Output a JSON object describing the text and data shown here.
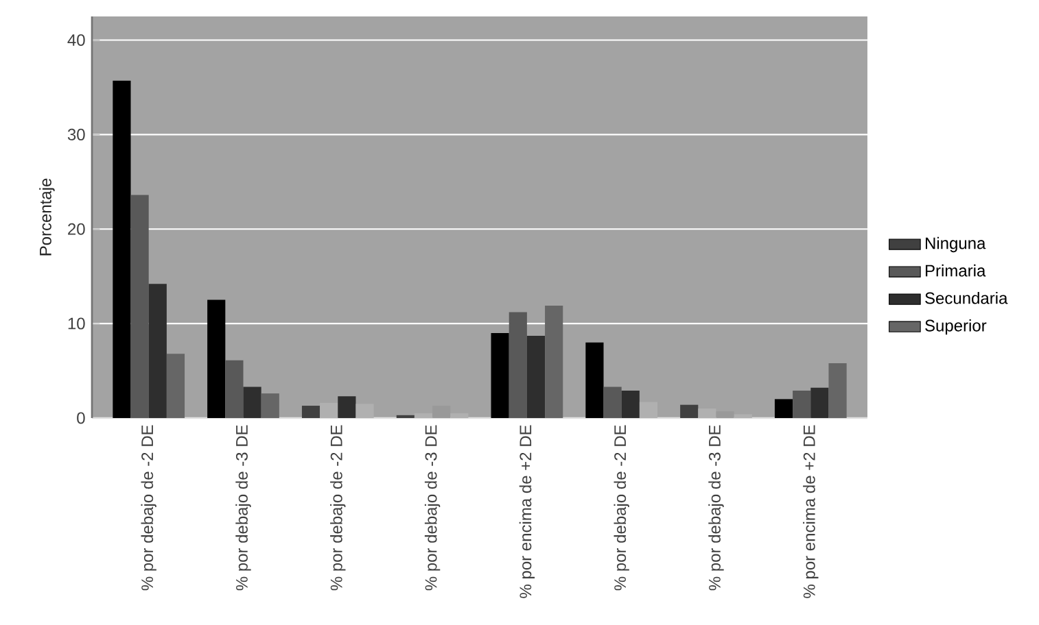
{
  "chart_data": {
    "type": "bar",
    "ylabel": "Porcentaje",
    "categories": [
      "% por debajo de -2 DE",
      "% por debajo de -3 DE",
      "% por debajo de -2 DE",
      "% por debajo de -3 DE",
      "% por encima de +2 DE",
      "% por debajo de -2 DE",
      "% por debajo de -3 DE",
      "% por encima de +2 DE"
    ],
    "series": [
      {
        "name": "Ninguna",
        "color": "#404040",
        "colors": [
          "#000000",
          "#000000",
          "#404040",
          "#404040",
          "#000000",
          "#000000",
          "#404040",
          "#000000"
        ],
        "values": [
          35.7,
          12.5,
          1.3,
          0.3,
          9.0,
          8.0,
          1.4,
          2.0
        ]
      },
      {
        "name": "Primaria",
        "color": "#595959",
        "colors": [
          "#595959",
          "#595959",
          "#b0b0b0",
          "#b0b0b0",
          "#595959",
          "#595959",
          "#b0b0b0",
          "#595959"
        ],
        "values": [
          23.6,
          6.1,
          1.6,
          0.5,
          11.2,
          3.3,
          1.0,
          2.9
        ]
      },
      {
        "name": "Secundaria",
        "color": "#2e2e2e",
        "colors": [
          "#2e2e2e",
          "#2e2e2e",
          "#2e2e2e",
          "#999999",
          "#2e2e2e",
          "#2e2e2e",
          "#999999",
          "#2e2e2e"
        ],
        "values": [
          14.2,
          3.3,
          2.3,
          1.3,
          8.7,
          2.9,
          0.7,
          3.2
        ]
      },
      {
        "name": "Superior",
        "color": "#666666",
        "colors": [
          "#666666",
          "#666666",
          "#b0b0b0",
          "#b0b0b0",
          "#666666",
          "#b0b0b0",
          "#b0b0b0",
          "#666666"
        ],
        "values": [
          6.8,
          2.6,
          1.5,
          0.5,
          11.9,
          1.7,
          0.4,
          5.8
        ]
      }
    ],
    "ylim": [
      0,
      42.5
    ],
    "yticks": [
      0,
      10,
      20,
      30,
      40
    ],
    "grid": "y",
    "legend": "right"
  }
}
